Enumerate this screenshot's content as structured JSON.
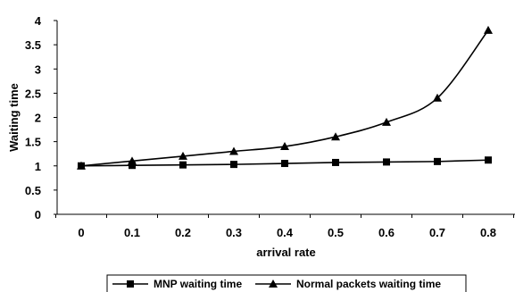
{
  "chart_data": {
    "type": "line",
    "xlabel": "arrival rate",
    "ylabel": "Waiting time",
    "x": [
      0,
      0.1,
      0.2,
      0.3,
      0.4,
      0.5,
      0.6,
      0.7,
      0.8
    ],
    "x_tick_labels": [
      "0",
      "0.1",
      "0.2",
      "0.3",
      "0.4",
      "0.5",
      "0.6",
      "0.7",
      "0.8"
    ],
    "ylim": [
      0,
      4
    ],
    "y_tick_labels": [
      "0",
      "0.5",
      "1",
      "1.5",
      "2",
      "2.5",
      "3",
      "3.5",
      "4"
    ],
    "grid": false,
    "legend_placement": "bottom",
    "series": [
      {
        "name": "MNP waiting time",
        "marker": "square",
        "color": "#000000",
        "values": [
          1.0,
          1.01,
          1.02,
          1.03,
          1.05,
          1.07,
          1.08,
          1.09,
          1.12
        ]
      },
      {
        "name": "Normal packets waiting time",
        "marker": "triangle",
        "color": "#000000",
        "values": [
          1.0,
          1.1,
          1.2,
          1.3,
          1.4,
          1.6,
          1.9,
          2.4,
          3.8
        ]
      }
    ]
  }
}
